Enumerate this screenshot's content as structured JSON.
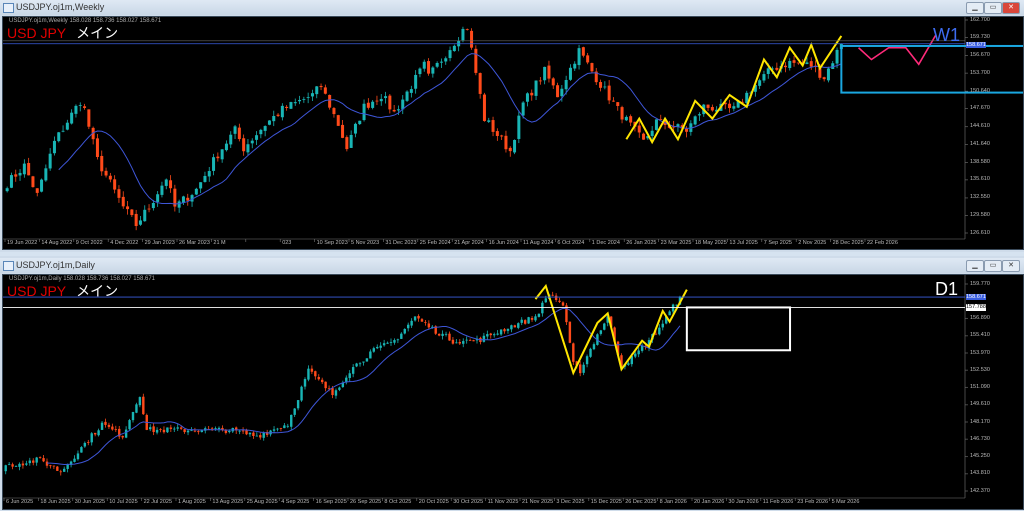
{
  "weekly": {
    "window_title": "USDJPY.oj1m,Weekly",
    "info": "USDJPY.oj1m,Weekly  158.028 158.736 158.027 158.671",
    "symbol": "USD JPY",
    "symbol_jp": "メイン",
    "timeframe": "W1",
    "timeframe_color": "#3d6cf0",
    "price_labels": [
      "162.700",
      "159.730",
      "156.670",
      "153.700",
      "150.640",
      "147.670",
      "144.610",
      "141.640",
      "138.580",
      "135.610",
      "132.550",
      "129.580",
      "126.610"
    ],
    "current_price": "158.671",
    "time_labels": [
      "19 Jun 2022",
      "14 Aug 2022",
      "9 Oct 2022",
      "4 Dec 2022",
      "29 Jan 2023",
      "26 Mar 2023",
      "21 M",
      "",
      "023",
      "10 Sep 2023",
      "5 Nov 2023",
      "31 Dec 2023",
      "25 Feb 2024",
      "21 Apr 2024",
      "16 Jun 2024",
      "11 Aug 2024",
      "6 Oct 2024",
      "1 Dec 2024",
      "26 Jan 2025",
      "23 Mar 2025",
      "18 May 2025",
      "13 Jul 2025",
      "7 Sep 2025",
      "2 Nov 2025",
      "28 Dec 2025",
      "22 Feb 2026"
    ],
    "price_range": [
      126.61,
      162.7
    ],
    "closes_approx": [
      [
        "2022-06-19",
        135
      ],
      [
        "2022-07-17",
        138
      ],
      [
        "2022-08-07",
        133
      ],
      [
        "2022-09-04",
        142
      ],
      [
        "2022-10-16",
        149
      ],
      [
        "2022-10-23",
        147.5
      ],
      [
        "2022-11-13",
        139
      ],
      [
        "2022-12-04",
        135
      ],
      [
        "2022-12-25",
        131
      ],
      [
        "2023-01-15",
        128
      ],
      [
        "2023-02-05",
        131
      ],
      [
        "2023-03-05",
        136
      ],
      [
        "2023-03-19",
        131
      ],
      [
        "2023-04-23",
        134
      ],
      [
        "2023-05-28",
        140
      ],
      [
        "2023-06-25",
        144
      ],
      [
        "2023-07-09",
        141
      ],
      [
        "2023-08-13",
        145
      ],
      [
        "2023-09-10",
        147.5
      ],
      [
        "2023-10-29",
        150
      ],
      [
        "2023-11-12",
        151.5
      ],
      [
        "2023-12-10",
        145
      ],
      [
        "2023-12-24",
        141
      ],
      [
        "2024-01-21",
        148
      ],
      [
        "2024-02-18",
        150
      ],
      [
        "2024-03-10",
        147
      ],
      [
        "2024-04-28",
        155
      ],
      [
        "2024-05-05",
        153
      ],
      [
        "2024-06-30",
        161
      ],
      [
        "2024-07-07",
        161.5
      ],
      [
        "2024-08-04",
        146
      ],
      [
        "2024-09-15",
        140.5
      ],
      [
        "2024-10-06",
        148.5
      ],
      [
        "2024-11-10",
        154
      ],
      [
        "2024-12-01",
        150
      ],
      [
        "2025-01-05",
        157.5
      ],
      [
        "2025-01-26",
        154
      ],
      [
        "2025-03-09",
        147.5
      ],
      [
        "2025-04-20",
        142
      ],
      [
        "2025-05-11",
        145.5
      ],
      [
        "2025-06-29",
        144
      ],
      [
        "2025-07-27",
        148
      ],
      [
        "2025-09-14",
        147.5
      ],
      [
        "2025-10-12",
        151
      ],
      [
        "2025-11-16",
        154.5
      ],
      [
        "2025-12-14",
        155.5
      ],
      [
        "2026-01-18",
        155
      ],
      [
        "2026-02-08",
        153
      ],
      [
        "2026-03-08",
        158.7
      ]
    ],
    "zigzag": [
      [
        "2025-03-23",
        142.5
      ],
      [
        "2025-04-13",
        146
      ],
      [
        "2025-05-04",
        142
      ],
      [
        "2025-05-25",
        146
      ],
      [
        "2025-06-15",
        142.5
      ],
      [
        "2025-07-13",
        149
      ],
      [
        "2025-08-10",
        146
      ],
      [
        "2025-09-07",
        150
      ],
      [
        "2025-10-05",
        148
      ],
      [
        "2025-11-02",
        156
      ],
      [
        "2025-11-23",
        153
      ],
      [
        "2025-12-14",
        158
      ],
      [
        "2026-01-04",
        155
      ],
      [
        "2026-01-18",
        158.5
      ],
      [
        "2026-02-01",
        154.5
      ],
      [
        "2026-03-08",
        160
      ]
    ],
    "projection": [
      [
        "2026-04-05",
        158
      ],
      [
        "2026-04-26",
        156
      ],
      [
        "2026-05-24",
        158
      ],
      [
        "2026-06-21",
        158
      ],
      [
        "2026-07-12",
        155.2
      ],
      [
        "2026-08-09",
        160.2
      ]
    ],
    "box": {
      "from": "2026-03-08",
      "to": "2027-01-03",
      "high": 158.3,
      "low": 150.4,
      "color": "#1aa7e0"
    }
  },
  "daily": {
    "window_title": "USDJPY.oj1m,Daily",
    "info": "USDJPY.oj1m,Daily  158.028 158.736 158.027 158.671",
    "symbol": "USD JPY",
    "symbol_jp": "メイン",
    "timeframe": "D1",
    "timeframe_color": "#ffffff",
    "price_labels": [
      "159.770",
      "158.671",
      "157.788",
      "156.890",
      "155.410",
      "153.970",
      "152.530",
      "151.090",
      "149.610",
      "148.170",
      "146.730",
      "145.250",
      "143.810",
      "142.370"
    ],
    "time_labels": [
      "6 Jun 2025",
      "18 Jun 2025",
      "30 Jun 2025",
      "10 Jul 2025",
      "22 Jul 2025",
      "1 Aug 2025",
      "13 Aug 2025",
      "25 Aug 2025",
      "4 Sep 2025",
      "16 Sep 2025",
      "26 Sep 2025",
      "8 Oct 2025",
      "20 Oct 2025",
      "30 Oct 2025",
      "11 Nov 2025",
      "21 Nov 2025",
      "3 Dec 2025",
      "15 Dec 2025",
      "26 Dec 2025",
      "8 Jan 2026",
      "20 Jan 2026",
      "30 Jan 2026",
      "11 Feb 2026",
      "23 Feb 2026",
      "5 Mar 2026"
    ],
    "price_range": [
      142.37,
      159.77
    ],
    "closes_approx": [
      [
        "2025-06-06",
        144.5
      ],
      [
        "2025-06-20",
        145
      ],
      [
        "2025-06-30",
        144
      ],
      [
        "2025-07-16",
        148
      ],
      [
        "2025-07-24",
        147
      ],
      [
        "2025-07-31",
        150.5
      ],
      [
        "2025-08-04",
        147.5
      ],
      [
        "2025-08-20",
        147.5
      ],
      [
        "2025-09-05",
        147.5
      ],
      [
        "2025-09-17",
        147
      ],
      [
        "2025-09-30",
        148
      ],
      [
        "2025-10-08",
        152.5
      ],
      [
        "2025-10-17",
        150.5
      ],
      [
        "2025-10-24",
        152.5
      ],
      [
        "2025-11-03",
        154
      ],
      [
        "2025-11-12",
        155
      ],
      [
        "2025-11-20",
        157
      ],
      [
        "2025-11-27",
        156
      ],
      [
        "2025-12-05",
        155
      ],
      [
        "2025-12-16",
        155
      ],
      [
        "2025-12-26",
        156
      ],
      [
        "2026-01-08",
        157
      ],
      [
        "2026-01-14",
        159
      ],
      [
        "2026-01-20",
        158
      ],
      [
        "2026-01-23",
        153
      ],
      [
        "2026-01-27",
        152.5
      ],
      [
        "2026-02-03",
        155.5
      ],
      [
        "2026-02-06",
        157
      ],
      [
        "2026-02-12",
        153
      ],
      [
        "2026-02-17",
        153.5
      ],
      [
        "2026-02-24",
        155
      ],
      [
        "2026-03-02",
        156.5
      ],
      [
        "2026-03-09",
        158.7
      ]
    ],
    "zigzag": [
      [
        "2026-01-08",
        158.5
      ],
      [
        "2026-01-13",
        159.6
      ],
      [
        "2026-01-23",
        152.3
      ],
      [
        "2026-02-03",
        156.5
      ],
      [
        "2026-02-06",
        157.3
      ],
      [
        "2026-02-12",
        152.6
      ],
      [
        "2026-02-20",
        155
      ],
      [
        "2026-02-24",
        154.5
      ],
      [
        "2026-03-02",
        157.5
      ],
      [
        "2026-03-04",
        156.6
      ],
      [
        "2026-03-11",
        159.3
      ]
    ],
    "box": {
      "from": "2026-03-11",
      "to": "2026-04-22",
      "high": 157.8,
      "low": 154.2,
      "color": "#ffffff"
    }
  },
  "colors": {
    "bull": "#19b5b5",
    "bear": "#ff4a1a",
    "ma": "#3e56d8",
    "zigzag": "#ffe600",
    "projection": "#ff2a7a",
    "price_line": "#3a5ee0"
  }
}
